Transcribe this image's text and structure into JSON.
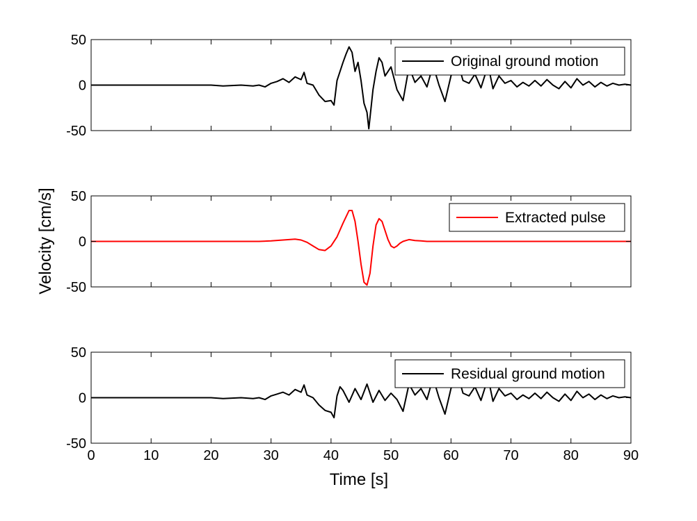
{
  "figure": {
    "xlabel": "Time [s]",
    "ylabel": "Velocity [cm/s]"
  },
  "chart_data": [
    {
      "type": "line",
      "xlim": [
        0,
        90
      ],
      "ylim": [
        -50,
        50
      ],
      "xticks": [
        0,
        10,
        20,
        30,
        40,
        50,
        60,
        70,
        80,
        90
      ],
      "yticks": [
        50,
        0,
        -50
      ],
      "show_xtick_labels": false,
      "legend": "top-right",
      "grid": false,
      "series": [
        {
          "name": "Original ground motion",
          "color": "#000000",
          "x": [
            0,
            10,
            20,
            22,
            25,
            27,
            28,
            29,
            30,
            31,
            32,
            33,
            34,
            35,
            35.5,
            36,
            37,
            38,
            39,
            40,
            40.5,
            41,
            42,
            42.5,
            43,
            43.5,
            44,
            44.5,
            45,
            45.5,
            46,
            46.3,
            47,
            47.5,
            48,
            48.5,
            49,
            50,
            51,
            52,
            53,
            54,
            55,
            56,
            57,
            58,
            59,
            60,
            61,
            62,
            63,
            64,
            65,
            66,
            66.5,
            67,
            68,
            69,
            70,
            71,
            72,
            73,
            74,
            75,
            76,
            77,
            78,
            79,
            80,
            81,
            82,
            83,
            84,
            85,
            86,
            87,
            88,
            89,
            90
          ],
          "y": [
            0,
            0,
            0,
            -1,
            0,
            -1,
            0,
            -2,
            2,
            4,
            7,
            3,
            9,
            6,
            14,
            2,
            0,
            -11,
            -18,
            -17,
            -22,
            5,
            25,
            34,
            42,
            36,
            15,
            25,
            5,
            -20,
            -30,
            -48,
            -5,
            15,
            30,
            25,
            10,
            20,
            -5,
            -17,
            20,
            3,
            10,
            -2,
            22,
            0,
            -18,
            10,
            28,
            5,
            2,
            12,
            -3,
            18,
            12,
            -4,
            10,
            2,
            5,
            -2,
            3,
            -1,
            5,
            -1,
            6,
            0,
            -4,
            4,
            -3,
            7,
            0,
            4,
            -2,
            3,
            -1,
            2,
            0,
            1,
            0
          ]
        },
        {
          "name": "Extracted pulse",
          "color": "#ff0000",
          "x": [
            0,
            10,
            20,
            25,
            28,
            30,
            32,
            34,
            35,
            36,
            37,
            38,
            39,
            40,
            41,
            42,
            43,
            43.5,
            44,
            44.5,
            45,
            45.5,
            46,
            46.5,
            47,
            47.5,
            48,
            48.5,
            49,
            49.5,
            50,
            50.5,
            51,
            51.5,
            52,
            52.5,
            53,
            54,
            55,
            56,
            57,
            60,
            70,
            80,
            90
          ],
          "y": [
            0,
            0,
            0,
            0,
            0,
            0.5,
            1.5,
            2.5,
            1.5,
            -1,
            -5,
            -9,
            -10,
            -5,
            5,
            20,
            34,
            34,
            22,
            0,
            -25,
            -45,
            -48,
            -35,
            -5,
            18,
            25,
            22,
            12,
            2,
            -5,
            -7,
            -5,
            -2,
            0,
            1,
            2,
            1,
            0.5,
            0,
            0,
            0,
            0,
            0,
            0
          ]
        }
      ]
    },
    {
      "type": "line",
      "xlim": [
        0,
        90
      ],
      "ylim": [
        -50,
        50
      ],
      "xticks": [
        0,
        10,
        20,
        30,
        40,
        50,
        60,
        70,
        80,
        90
      ],
      "yticks": [
        50,
        0,
        -50
      ],
      "show_xtick_labels": false,
      "legend": "top-right",
      "grid": false,
      "series": [
        {
          "name": "Extracted pulse",
          "color": "#ff0000",
          "x": [
            0,
            10,
            20,
            25,
            28,
            30,
            32,
            34,
            35,
            36,
            37,
            38,
            39,
            40,
            41,
            42,
            43,
            43.5,
            44,
            44.5,
            45,
            45.5,
            46,
            46.5,
            47,
            47.5,
            48,
            48.5,
            49,
            49.5,
            50,
            50.5,
            51,
            51.5,
            52,
            52.5,
            53,
            54,
            55,
            56,
            57,
            60,
            70,
            80,
            90
          ],
          "y": [
            0,
            0,
            0,
            0,
            0,
            0.5,
            1.5,
            2.5,
            1.5,
            -1,
            -5,
            -9,
            -10,
            -5,
            5,
            20,
            34,
            34,
            22,
            0,
            -25,
            -45,
            -48,
            -35,
            -5,
            18,
            25,
            22,
            12,
            2,
            -5,
            -7,
            -5,
            -2,
            0,
            1,
            2,
            1,
            0.5,
            0,
            0,
            0,
            0,
            0,
            0
          ]
        }
      ]
    },
    {
      "type": "line",
      "xlim": [
        0,
        90
      ],
      "ylim": [
        -50,
        50
      ],
      "xticks": [
        0,
        10,
        20,
        30,
        40,
        50,
        60,
        70,
        80,
        90
      ],
      "yticks": [
        50,
        0,
        -50
      ],
      "show_xtick_labels": true,
      "legend": "top-right",
      "grid": false,
      "series": [
        {
          "name": "Residual ground motion",
          "color": "#000000",
          "x": [
            0,
            10,
            20,
            22,
            25,
            27,
            28,
            29,
            30,
            31,
            32,
            33,
            34,
            35,
            35.5,
            36,
            37,
            38,
            39,
            40,
            40.5,
            41,
            41.5,
            42,
            43,
            44,
            45,
            46,
            47,
            48,
            49,
            50,
            51,
            52,
            53,
            54,
            55,
            56,
            57,
            58,
            59,
            60,
            61,
            62,
            63,
            64,
            65,
            66,
            66.5,
            67,
            68,
            69,
            70,
            71,
            72,
            73,
            74,
            75,
            76,
            77,
            78,
            79,
            80,
            81,
            82,
            83,
            84,
            85,
            86,
            87,
            88,
            89,
            90
          ],
          "y": [
            0,
            0,
            0,
            -1,
            0,
            -1,
            0,
            -2,
            2,
            4,
            6,
            3,
            9,
            6,
            14,
            3,
            0,
            -8,
            -14,
            -16,
            -22,
            2,
            12,
            8,
            -5,
            10,
            -2,
            15,
            -5,
            8,
            -3,
            5,
            -2,
            -15,
            15,
            3,
            10,
            -2,
            22,
            0,
            -18,
            10,
            28,
            5,
            2,
            12,
            -3,
            18,
            12,
            -4,
            10,
            2,
            5,
            -2,
            3,
            -1,
            5,
            -1,
            6,
            0,
            -4,
            4,
            -3,
            7,
            0,
            4,
            -2,
            3,
            -1,
            2,
            0,
            1,
            0
          ]
        }
      ]
    }
  ]
}
